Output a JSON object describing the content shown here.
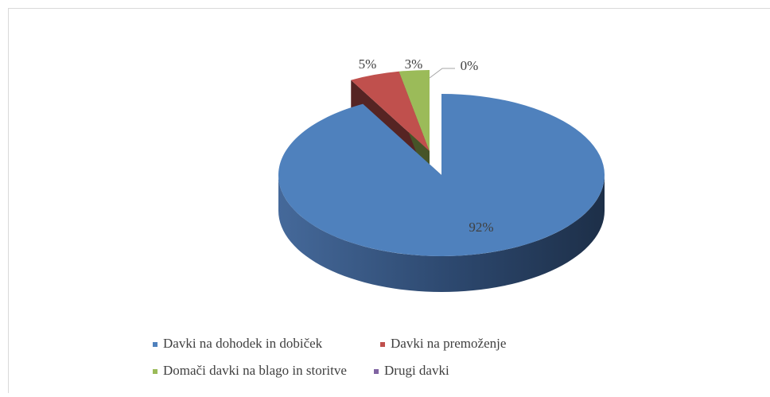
{
  "chart_data": {
    "type": "pie",
    "categories": [
      "Davki na dohodek in dobiček",
      "Davki na premoženje",
      "Domači davki na blago in storitve",
      "Drugi davki"
    ],
    "values": [
      92,
      5,
      3,
      0
    ],
    "value_labels": [
      "92%",
      "5%",
      "3%",
      "0%"
    ],
    "colors": [
      "#4f81bd",
      "#c0504d",
      "#9bbb59",
      "#8064a2"
    ],
    "legend": "bottom"
  }
}
